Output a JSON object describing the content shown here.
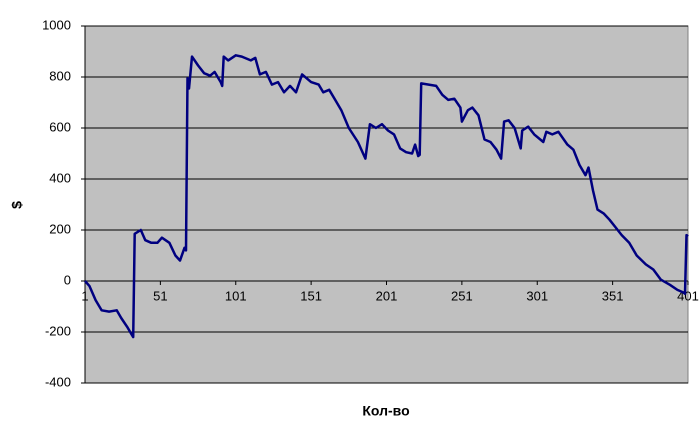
{
  "chart_data": {
    "type": "line",
    "x_label": "Кол-во",
    "y_label": "$",
    "x": [
      1,
      4,
      8,
      12,
      17,
      22,
      25,
      29,
      32,
      33,
      34,
      38,
      41,
      45,
      49,
      52,
      57,
      61,
      64,
      67,
      68,
      69,
      70,
      72,
      76,
      80,
      84,
      87,
      91,
      92,
      93,
      96,
      101,
      105,
      111,
      114,
      117,
      121,
      125,
      129,
      133,
      137,
      141,
      145,
      151,
      156,
      159,
      163,
      167,
      171,
      176,
      182,
      187,
      190,
      194,
      198,
      202,
      206,
      210,
      214,
      218,
      220,
      222,
      223,
      224,
      229,
      234,
      238,
      242,
      246,
      250,
      251,
      255,
      258,
      262,
      266,
      270,
      274,
      277,
      279,
      282,
      286,
      290,
      291,
      295,
      299,
      305,
      307,
      311,
      315,
      321,
      325,
      329,
      333,
      335,
      338,
      341,
      345,
      349,
      353,
      357,
      362,
      367,
      373,
      378,
      383,
      389,
      394,
      398,
      399,
      400,
      401
    ],
    "series": [
      {
        "color": "#000080",
        "values": [
          0,
          -20,
          -75,
          -115,
          -120,
          -115,
          -145,
          -180,
          -210,
          -220,
          185,
          200,
          160,
          150,
          150,
          170,
          150,
          100,
          80,
          130,
          120,
          795,
          755,
          880,
          845,
          815,
          805,
          820,
          780,
          765,
          880,
          865,
          885,
          880,
          865,
          875,
          810,
          820,
          770,
          780,
          740,
          765,
          740,
          810,
          780,
          770,
          740,
          750,
          710,
          670,
          600,
          545,
          480,
          615,
          600,
          615,
          590,
          575,
          520,
          505,
          500,
          535,
          490,
          495,
          775,
          770,
          765,
          730,
          710,
          715,
          680,
          625,
          670,
          680,
          650,
          555,
          545,
          515,
          480,
          625,
          630,
          600,
          520,
          590,
          605,
          575,
          545,
          585,
          575,
          585,
          535,
          515,
          455,
          415,
          445,
          355,
          280,
          265,
          240,
          210,
          180,
          150,
          100,
          65,
          45,
          5,
          -15,
          -35,
          -45,
          -50,
          180,
          175
        ]
      }
    ],
    "xlim": [
      1,
      401
    ],
    "xticks": [
      1,
      51,
      101,
      151,
      201,
      251,
      301,
      351,
      401
    ],
    "ylim": [
      -400,
      1000
    ],
    "yticks": [
      -400,
      -200,
      0,
      200,
      400,
      600,
      800,
      1000
    ],
    "grid": true,
    "plot_background": "#c0c0c0"
  }
}
